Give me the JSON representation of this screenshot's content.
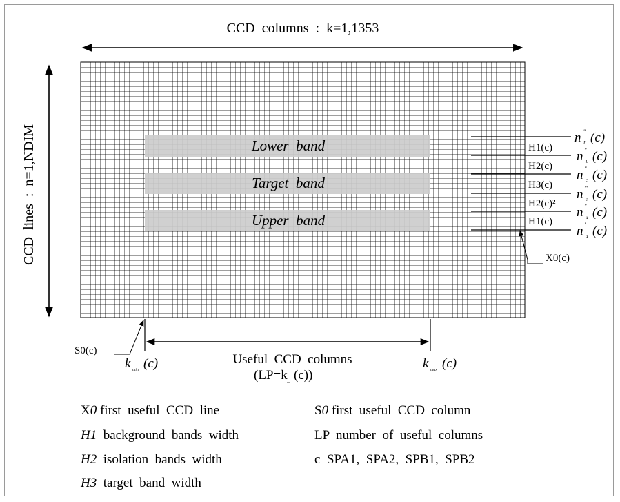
{
  "top_label": "CCD  columns  :  k=1,1353",
  "side_label": "CCD  lines  :  n=1,NDIM",
  "bands": [
    "Lower  band",
    "Target  band",
    "Upper  band"
  ],
  "right_heights": [
    "H1(c)",
    "H2(c)",
    "H3(c)",
    "H2(c)²",
    "H1(c)"
  ],
  "right_n_labels": [
    {
      "base": "n",
      "sup": "'''",
      "sub": "L",
      "arg": "(c)"
    },
    {
      "base": "n",
      "sup": "''",
      "sub": "L",
      "arg": "(c)"
    },
    {
      "base": "n",
      "sup": "''",
      "sub": "c",
      "arg": "(c)"
    },
    {
      "base": "n",
      "sup": "'''",
      "sub": "c",
      "arg": "(c)"
    },
    {
      "base": "n",
      "sup": "''",
      "sub": "u",
      "arg": "(c)"
    },
    {
      "base": "n",
      "sup": "'",
      "sub": "u",
      "arg": "(c)"
    }
  ],
  "x0_label": "X0(c)",
  "s0_label": "S0(c)",
  "kmin": {
    "base": "k",
    "sub": "min",
    "arg": "(c)"
  },
  "kmax": {
    "base": "k",
    "sub": "max",
    "arg": "(c)"
  },
  "useful_label": "Useful  CCD  columns",
  "lp_label": "(LP=k",
  "lp_sub": "...",
  "lp_tail": "(c))",
  "legend_left": [
    {
      "sym": "X",
      "sym_italic": "0",
      "text": " first  useful  CCD  line"
    },
    {
      "sym": "H1",
      "sym_italic": "",
      "text": "  background  bands  width"
    },
    {
      "sym": "H2",
      "sym_italic": "",
      "text": "  isolation  bands  width"
    },
    {
      "sym": "H3",
      "sym_italic": "",
      "text": "  target  band  width"
    }
  ],
  "legend_right": [
    {
      "sym": "S",
      "sym_italic": "0",
      "text": " first  useful  CCD  column"
    },
    {
      "sym": "LP",
      "sym_italic": "",
      "text": "  number  of  useful  columns"
    },
    {
      "sym": "c",
      "sym_italic": "",
      "text": "  SPA1,  SPA2,  SPB1,  SPB2"
    }
  ]
}
